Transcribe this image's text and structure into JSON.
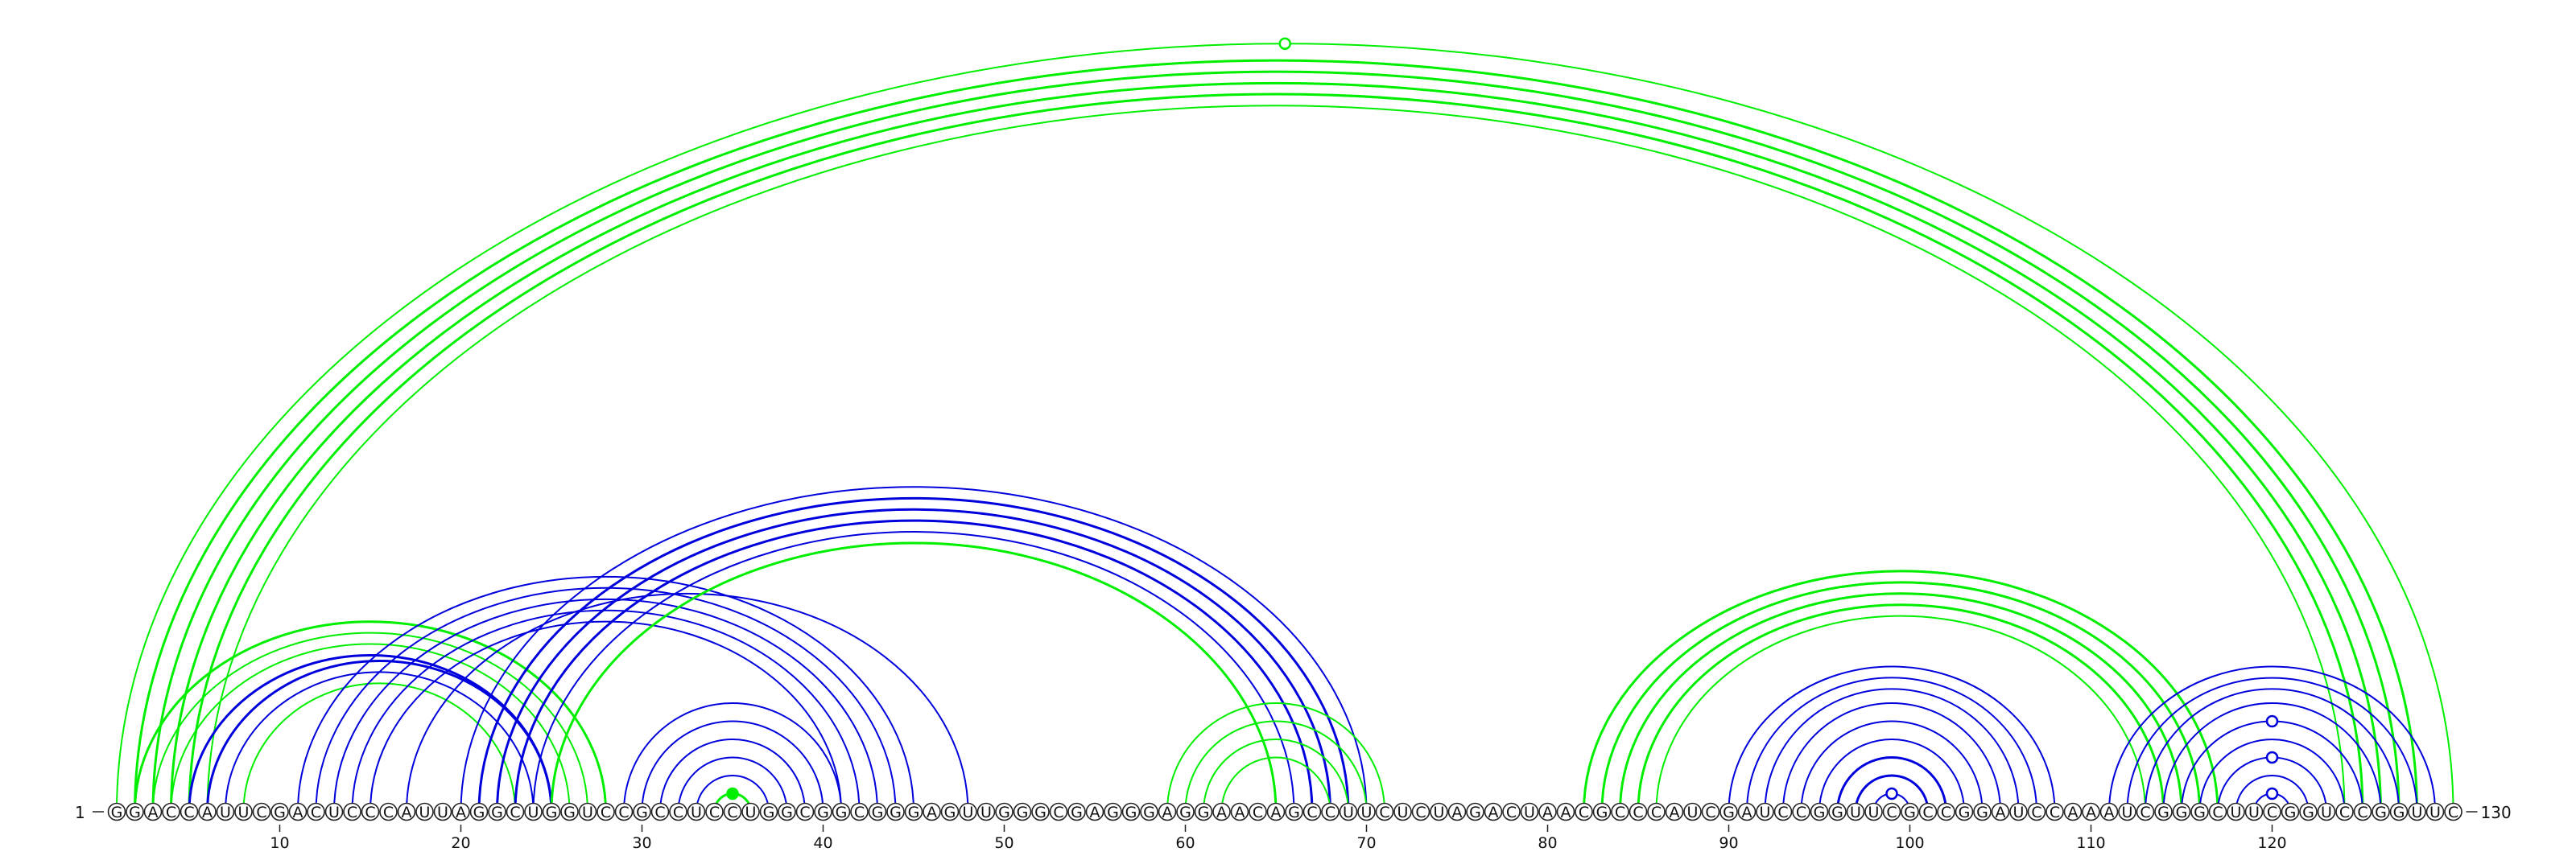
{
  "sequence": "GGACCAUUCGACUCCCAUUAGGCUGGUCCGCCUCCUGGCGGCGGGAGUUGGGCGAGGGAGGAACAGCCUUCUCUAGACUAACGCCCAUCGAUCCGGUUCGCCGGAUCCAAAUCGGGCUUCGGUCCGGUUC",
  "start_label": "1",
  "end_label": "130",
  "ticks": [
    "10",
    "20",
    "30",
    "40",
    "50",
    "60",
    "70",
    "80",
    "90",
    "100",
    "110",
    "120"
  ],
  "colors": {
    "green": "#00ee00",
    "blue": "#0000dd"
  },
  "arcs": [
    {
      "i": 1,
      "j": 130,
      "color": "green",
      "w": 2
    },
    {
      "i": 2,
      "j": 128,
      "color": "green",
      "w": 3
    },
    {
      "i": 3,
      "j": 127,
      "color": "green",
      "w": 3
    },
    {
      "i": 4,
      "j": 126,
      "color": "green",
      "w": 3
    },
    {
      "i": 5,
      "j": 125,
      "color": "green",
      "w": 3
    },
    {
      "i": 6,
      "j": 124,
      "color": "green",
      "w": 2
    },
    {
      "i": 2,
      "j": 28,
      "color": "green",
      "w": 3
    },
    {
      "i": 3,
      "j": 27,
      "color": "green",
      "w": 2
    },
    {
      "i": 4,
      "j": 26,
      "color": "green",
      "w": 2
    },
    {
      "i": 5,
      "j": 25,
      "color": "blue",
      "w": 3
    },
    {
      "i": 6,
      "j": 25,
      "color": "blue",
      "w": 3
    },
    {
      "i": 7,
      "j": 24,
      "color": "blue",
      "w": 2
    },
    {
      "i": 8,
      "j": 23,
      "color": "green",
      "w": 2
    },
    {
      "i": 11,
      "j": 45,
      "color": "blue",
      "w": 2
    },
    {
      "i": 12,
      "j": 44,
      "color": "blue",
      "w": 2
    },
    {
      "i": 13,
      "j": 43,
      "color": "blue",
      "w": 2
    },
    {
      "i": 14,
      "j": 42,
      "color": "blue",
      "w": 2
    },
    {
      "i": 15,
      "j": 41,
      "color": "blue",
      "w": 2
    },
    {
      "i": 17,
      "j": 48,
      "color": "blue",
      "w": 2
    },
    {
      "i": 20,
      "j": 70,
      "color": "blue",
      "w": 2
    },
    {
      "i": 21,
      "j": 69,
      "color": "blue",
      "w": 3
    },
    {
      "i": 22,
      "j": 68,
      "color": "blue",
      "w": 3
    },
    {
      "i": 23,
      "j": 67,
      "color": "blue",
      "w": 3
    },
    {
      "i": 24,
      "j": 66,
      "color": "blue",
      "w": 2
    },
    {
      "i": 25,
      "j": 65,
      "color": "green",
      "w": 3
    },
    {
      "i": 29,
      "j": 41,
      "color": "blue",
      "w": 2
    },
    {
      "i": 30,
      "j": 40,
      "color": "blue",
      "w": 2
    },
    {
      "i": 31,
      "j": 39,
      "color": "blue",
      "w": 2
    },
    {
      "i": 32,
      "j": 38,
      "color": "blue",
      "w": 2
    },
    {
      "i": 33,
      "j": 37,
      "color": "blue",
      "w": 2
    },
    {
      "i": 34,
      "j": 36,
      "color": "green",
      "w": 3
    },
    {
      "i": 59,
      "j": 71,
      "color": "green",
      "w": 2
    },
    {
      "i": 60,
      "j": 70,
      "color": "green",
      "w": 2
    },
    {
      "i": 61,
      "j": 69,
      "color": "green",
      "w": 2
    },
    {
      "i": 62,
      "j": 68,
      "color": "green",
      "w": 2
    },
    {
      "i": 82,
      "j": 117,
      "color": "green",
      "w": 3
    },
    {
      "i": 83,
      "j": 116,
      "color": "green",
      "w": 3
    },
    {
      "i": 84,
      "j": 115,
      "color": "green",
      "w": 3
    },
    {
      "i": 85,
      "j": 114,
      "color": "green",
      "w": 3
    },
    {
      "i": 86,
      "j": 113,
      "color": "green",
      "w": 2
    },
    {
      "i": 90,
      "j": 108,
      "color": "blue",
      "w": 2
    },
    {
      "i": 91,
      "j": 107,
      "color": "blue",
      "w": 2
    },
    {
      "i": 92,
      "j": 106,
      "color": "blue",
      "w": 2
    },
    {
      "i": 93,
      "j": 105,
      "color": "blue",
      "w": 2
    },
    {
      "i": 94,
      "j": 104,
      "color": "blue",
      "w": 2
    },
    {
      "i": 95,
      "j": 103,
      "color": "blue",
      "w": 2
    },
    {
      "i": 96,
      "j": 102,
      "color": "blue",
      "w": 3
    },
    {
      "i": 97,
      "j": 101,
      "color": "blue",
      "w": 3
    },
    {
      "i": 98,
      "j": 100,
      "color": "blue",
      "w": 2
    },
    {
      "i": 111,
      "j": 129,
      "color": "blue",
      "w": 2
    },
    {
      "i": 112,
      "j": 128,
      "color": "blue",
      "w": 2
    },
    {
      "i": 113,
      "j": 127,
      "color": "blue",
      "w": 2
    },
    {
      "i": 114,
      "j": 126,
      "color": "blue",
      "w": 2
    },
    {
      "i": 115,
      "j": 125,
      "color": "blue",
      "w": 2
    },
    {
      "i": 116,
      "j": 124,
      "color": "blue",
      "w": 2
    },
    {
      "i": 117,
      "j": 123,
      "color": "blue",
      "w": 2
    },
    {
      "i": 118,
      "j": 122,
      "color": "blue",
      "w": 2
    },
    {
      "i": 119,
      "j": 121,
      "color": "blue",
      "w": 2
    }
  ],
  "markers": [
    {
      "at": 65.5,
      "arc_i": 1,
      "arc_j": 130,
      "color": "green",
      "filled": false
    },
    {
      "at": 35,
      "arc_i": 34,
      "arc_j": 36,
      "color": "green",
      "filled": true
    },
    {
      "at": 99,
      "arc_i": 98,
      "arc_j": 100,
      "color": "blue",
      "filled": false
    },
    {
      "at": 120,
      "arc_i": 115,
      "arc_j": 125,
      "color": "blue",
      "filled": false
    },
    {
      "at": 120,
      "arc_i": 117,
      "arc_j": 123,
      "color": "blue",
      "filled": false
    },
    {
      "at": 120,
      "arc_i": 119,
      "arc_j": 121,
      "color": "blue",
      "filled": false
    }
  ]
}
